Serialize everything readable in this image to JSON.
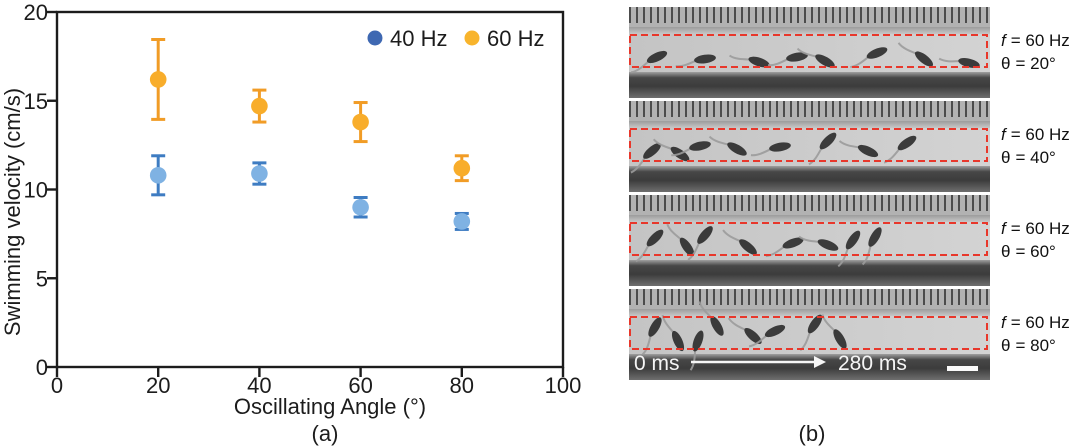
{
  "chart_data": {
    "type": "scatter",
    "title": "",
    "xlabel": "Oscillating Angle (°)",
    "ylabel": "Swimming velocity (cm/s)",
    "xlim": [
      0,
      100
    ],
    "ylim": [
      0,
      20
    ],
    "xticks": [
      "0",
      "20",
      "40",
      "60",
      "80",
      "100"
    ],
    "yticks": [
      "0",
      "5",
      "10",
      "15",
      "20"
    ],
    "grid": false,
    "legend_position": "top-right-inside",
    "frame": "full-box",
    "categories": [
      20,
      40,
      60,
      80
    ],
    "series": [
      {
        "name": "40 Hz",
        "marker_color": "#7FB2E3",
        "errorbar_color": "#3E7CC2",
        "legend_dot_color": "#3E68B2",
        "values": [
          10.8,
          10.9,
          9.0,
          8.2
        ],
        "errors": [
          1.1,
          0.6,
          0.55,
          0.45
        ]
      },
      {
        "name": "60 Hz",
        "marker_color": "#F8AD2B",
        "errorbar_color": "#F19C26",
        "legend_dot_color": "#F8B42C",
        "values": [
          16.2,
          14.7,
          13.8,
          11.2
        ],
        "errors": [
          2.25,
          0.9,
          1.1,
          0.7
        ]
      }
    ]
  },
  "panel_a": {
    "caption": "(a)"
  },
  "panel_b": {
    "caption": "(b)",
    "dash_color": "#E8372B",
    "time_start": "0 ms",
    "time_end": "280 ms",
    "strips": [
      {
        "freq_sym": "f",
        "freq_rest": "= 60 Hz",
        "angle_sym": "θ",
        "angle_rest": "= 20°",
        "fish": [
          [
            28,
            50,
            -25
          ],
          [
            76,
            52,
            -8
          ],
          [
            130,
            55,
            18
          ],
          [
            168,
            50,
            -10
          ],
          [
            196,
            54,
            30
          ],
          [
            248,
            46,
            -22
          ],
          [
            295,
            52,
            38
          ],
          [
            340,
            56,
            14
          ]
        ]
      },
      {
        "freq_sym": "f",
        "freq_rest": "= 60 Hz",
        "angle_sym": "θ",
        "angle_rest": "= 40°",
        "fish": [
          [
            23,
            50,
            -40
          ],
          [
            51,
            53,
            35
          ],
          [
            71,
            45,
            -12
          ],
          [
            108,
            48,
            30
          ],
          [
            151,
            46,
            -10
          ],
          [
            199,
            40,
            -45
          ],
          [
            239,
            50,
            25
          ],
          [
            278,
            42,
            -35
          ]
        ]
      },
      {
        "freq_sym": "f",
        "freq_rest": "= 60 Hz",
        "angle_sym": "θ",
        "angle_rest": "= 60°",
        "fish": [
          [
            26,
            43,
            -45
          ],
          [
            58,
            52,
            55
          ],
          [
            76,
            40,
            -50
          ],
          [
            119,
            52,
            40
          ],
          [
            164,
            48,
            -20
          ],
          [
            199,
            50,
            22
          ],
          [
            224,
            45,
            -55
          ],
          [
            246,
            42,
            -60
          ]
        ]
      },
      {
        "freq_sym": "f",
        "freq_rest": "= 60 Hz",
        "angle_sym": "θ",
        "angle_rest": "= 80°",
        "fish": [
          [
            26,
            38,
            -60
          ],
          [
            49,
            52,
            65
          ],
          [
            69,
            52,
            -70
          ],
          [
            88,
            37,
            60
          ],
          [
            124,
            47,
            42
          ],
          [
            146,
            42,
            -25
          ],
          [
            186,
            35,
            -55
          ],
          [
            211,
            50,
            60
          ]
        ]
      }
    ]
  }
}
